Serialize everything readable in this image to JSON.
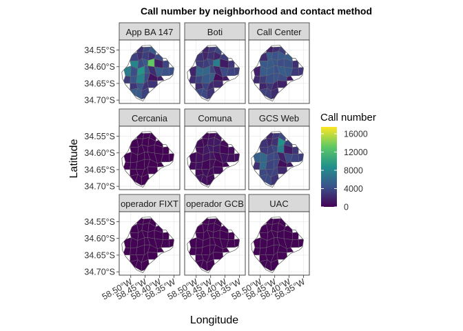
{
  "chart_data": {
    "type": "heatmap",
    "subtype": "faceted choropleth map",
    "title": "Call number by neighborhood and contact method",
    "xlabel": "Longitude",
    "ylabel": "Latitude",
    "x_ticks": [
      "58.50°W",
      "58.45°W",
      "58.40°W",
      "58.35°W"
    ],
    "y_ticks": [
      "34.55°S",
      "34.60°S",
      "34.65°S",
      "34.70°S"
    ],
    "xlim": [
      -58.54,
      -58.33
    ],
    "ylim": [
      -34.71,
      -34.52
    ],
    "facets": [
      "App BA 147",
      "Boti",
      "Call Center",
      "Cercania",
      "Comuna",
      "GCS Web",
      "operador FIXT",
      "operador GCB",
      "UAC"
    ],
    "legend": {
      "title": "Call number",
      "ticks": [
        "16000",
        "12000",
        "8000",
        "4000",
        "0"
      ],
      "range": [
        0,
        17500
      ],
      "colors": [
        "#440154",
        "#3b528b",
        "#21908c",
        "#5dc863",
        "#fde725"
      ],
      "placement": "right"
    },
    "grid": true,
    "facet_intensity": [
      {
        "facet": "App BA 147",
        "level": "high",
        "max_value": 17000
      },
      {
        "facet": "Boti",
        "level": "medium",
        "max_value": 9500
      },
      {
        "facet": "Call Center",
        "level": "medium-low",
        "max_value": 5500
      },
      {
        "facet": "Cercania",
        "level": "very-low",
        "max_value": 300
      },
      {
        "facet": "Comuna",
        "level": "low",
        "max_value": 1500
      },
      {
        "facet": "GCS Web",
        "level": "medium",
        "max_value": 9500
      },
      {
        "facet": "operador FIXT",
        "level": "very-low",
        "max_value": 250
      },
      {
        "facet": "operador GCB",
        "level": "very-low",
        "max_value": 300
      },
      {
        "facet": "UAC",
        "level": "very-low",
        "max_value": 300
      }
    ]
  }
}
